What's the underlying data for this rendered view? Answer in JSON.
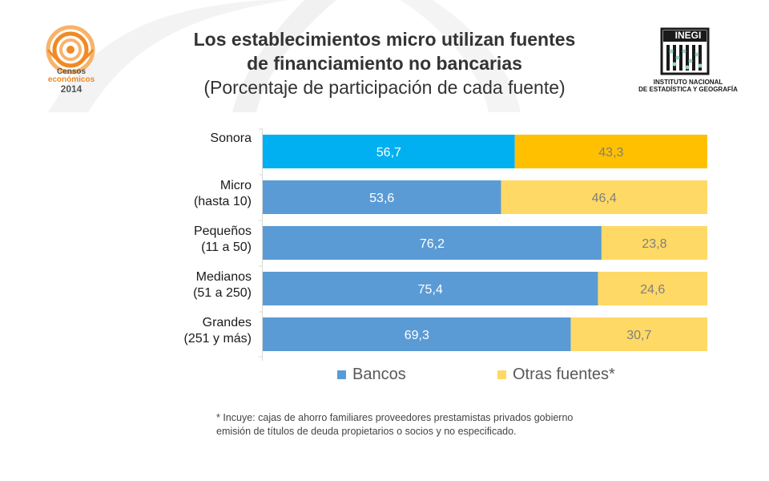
{
  "title_line1": "Los establecimientos micro utilizan fuentes",
  "title_line2": "de financiamiento no bancarias",
  "subtitle": "(Porcentaje de participación de cada fuente)",
  "censos_logo": {
    "line1": "Censos",
    "line2": "económicos",
    "line3": "2014",
    "colors": {
      "orange": "#f08a24",
      "light_orange": "#f7b36a",
      "text": "#555555"
    }
  },
  "inegi_logo": {
    "brand": "INEGI",
    "line1": "INSTITUTO NACIONAL",
    "line2": "DE ESTADÍSTICA Y GEOGRAFÍA"
  },
  "footnote_line1": "* Incuye: cajas de ahorro  familiares  proveedores  prestamistas privados  gobierno",
  "footnote_line2": "emisión de títulos de deuda  propietarios o socios y no especificado.",
  "colors": {
    "sonora_bancos": "#00b0f0",
    "sonora_otras": "#ffc000",
    "bancos": "#5b9bd5",
    "otras": "#ffd966",
    "label_dark": "#ffffff",
    "label_light": "#7f7f7f"
  },
  "chart_data": {
    "type": "bar",
    "orientation": "horizontal",
    "stacked": true,
    "categories": [
      [
        "Sonora"
      ],
      [
        "Micro",
        "(hasta 10)"
      ],
      [
        "Pequeños",
        "(11 a 50)"
      ],
      [
        "Medianos",
        "(51 a 250)"
      ],
      [
        "Grandes",
        "(251 y más)"
      ]
    ],
    "series": [
      {
        "name": "Bancos",
        "values": [
          56.7,
          53.6,
          76.2,
          75.4,
          69.3
        ],
        "labels": [
          "56,7",
          "53,6",
          "76,2",
          "75,4",
          "69,3"
        ]
      },
      {
        "name": "Otras fuentes*",
        "values": [
          43.3,
          46.4,
          23.8,
          24.6,
          30.7
        ],
        "labels": [
          "43,3",
          "46,4",
          "23,8",
          "24,6",
          "30,7"
        ]
      }
    ],
    "xlim": [
      0,
      100
    ],
    "grid": false,
    "legend": "bottom"
  }
}
